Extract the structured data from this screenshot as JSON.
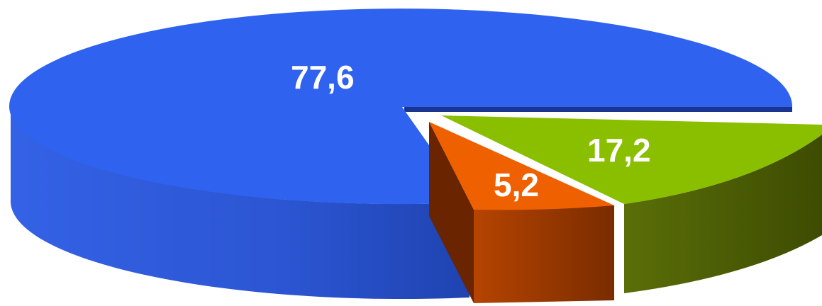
{
  "chart_data": {
    "type": "pie",
    "style": "3d-exploded",
    "legend": "none",
    "slices": [
      {
        "value": 77.6,
        "label": "77,6",
        "color": "#2f5fe8",
        "side_color": "#2448b8",
        "dark_color": "#1a3590",
        "explode": 0
      },
      {
        "value": 5.2,
        "label": "5,2",
        "color": "#ef6000",
        "side_color": "#8a3200",
        "dark_color": "#6a2400",
        "explode": 1
      },
      {
        "value": 17.2,
        "label": "17,2",
        "color": "#8abf00",
        "side_color": "#4d5e08",
        "dark_color": "#3a4800",
        "explode": 1
      }
    ]
  }
}
